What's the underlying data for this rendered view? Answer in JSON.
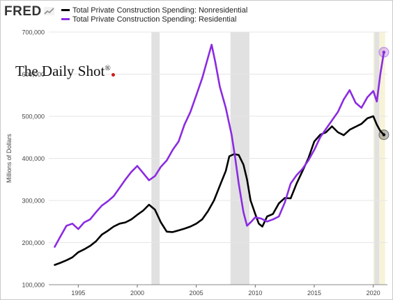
{
  "header": {
    "logo_text": "FRED",
    "logo_icon": "fred-chart-icon"
  },
  "watermark": {
    "text": "The Daily Shot",
    "mark": "®"
  },
  "chart_data": {
    "type": "line",
    "title": "",
    "xlabel": "",
    "ylabel": "Millions of Dollars",
    "xlim": [
      1992.5,
      2021.2
    ],
    "ylim": [
      100000,
      700000
    ],
    "y_ticks": [
      100000,
      200000,
      300000,
      400000,
      500000,
      600000,
      700000
    ],
    "y_tick_labels": [
      "100,000",
      "200,000",
      "300,000",
      "400,000",
      "500,000",
      "600,000",
      "700,000"
    ],
    "x_ticks": [
      1995,
      2000,
      2005,
      2010,
      2015,
      2020
    ],
    "x_tick_labels": [
      "1995",
      "2000",
      "2005",
      "2010",
      "2015",
      "2020"
    ],
    "grid": true,
    "legend": "top-left",
    "recessions": [
      [
        2001.2,
        2001.9
      ],
      [
        2007.9,
        2009.5
      ],
      [
        2020.1,
        2020.5
      ]
    ],
    "highlight_region": [
      2020.0,
      2021.0
    ],
    "series": [
      {
        "name": "Total Private Construction Spending: Nonresidential",
        "color": "#000000",
        "x": [
          1993.0,
          1993.5,
          1994.0,
          1994.5,
          1995.0,
          1995.5,
          1996.0,
          1996.5,
          1997.0,
          1997.5,
          1998.0,
          1998.5,
          1999.0,
          1999.5,
          2000.0,
          2000.5,
          2001.0,
          2001.5,
          2002.0,
          2002.5,
          2003.0,
          2003.5,
          2004.0,
          2004.5,
          2005.0,
          2005.5,
          2006.0,
          2006.5,
          2007.0,
          2007.5,
          2007.8,
          2008.2,
          2008.6,
          2009.0,
          2009.3,
          2009.6,
          2010.0,
          2010.3,
          2010.6,
          2011.0,
          2011.5,
          2012.0,
          2012.5,
          2013.0,
          2013.5,
          2014.0,
          2014.5,
          2015.0,
          2015.5,
          2016.0,
          2016.5,
          2017.0,
          2017.5,
          2018.0,
          2018.5,
          2019.0,
          2019.5,
          2020.0,
          2020.3,
          2020.6,
          2020.9
        ],
        "y": [
          147000,
          152000,
          158000,
          165000,
          177000,
          184000,
          192000,
          203000,
          219000,
          228000,
          238000,
          245000,
          248000,
          255000,
          266000,
          276000,
          290000,
          278000,
          248000,
          226000,
          225000,
          229000,
          233000,
          238000,
          245000,
          255000,
          275000,
          300000,
          335000,
          370000,
          405000,
          410000,
          408000,
          385000,
          350000,
          300000,
          268000,
          245000,
          238000,
          262000,
          268000,
          293000,
          306000,
          305000,
          340000,
          370000,
          400000,
          440000,
          456000,
          462000,
          476000,
          462000,
          455000,
          468000,
          475000,
          482000,
          495000,
          500000,
          480000,
          465000,
          456000
        ]
      },
      {
        "name": "Total Private Construction Spending: Residential",
        "color": "#8b2be2",
        "x": [
          1993.0,
          1993.5,
          1994.0,
          1994.5,
          1995.0,
          1995.5,
          1996.0,
          1996.5,
          1997.0,
          1997.5,
          1998.0,
          1998.5,
          1999.0,
          1999.5,
          2000.0,
          2000.5,
          2001.0,
          2001.5,
          2002.0,
          2002.5,
          2003.0,
          2003.5,
          2004.0,
          2004.5,
          2005.0,
          2005.5,
          2006.0,
          2006.3,
          2006.6,
          2007.0,
          2007.5,
          2008.0,
          2008.3,
          2008.6,
          2009.0,
          2009.3,
          2009.6,
          2010.0,
          2010.5,
          2011.0,
          2011.5,
          2012.0,
          2012.5,
          2013.0,
          2013.5,
          2014.0,
          2014.5,
          2015.0,
          2015.5,
          2016.0,
          2016.5,
          2017.0,
          2017.5,
          2018.0,
          2018.5,
          2019.0,
          2019.5,
          2020.0,
          2020.3,
          2020.6,
          2020.9
        ],
        "y": [
          190000,
          215000,
          240000,
          245000,
          232000,
          248000,
          255000,
          272000,
          288000,
          298000,
          310000,
          330000,
          350000,
          368000,
          382000,
          365000,
          348000,
          358000,
          380000,
          395000,
          420000,
          440000,
          480000,
          510000,
          550000,
          590000,
          640000,
          670000,
          630000,
          570000,
          520000,
          455000,
          400000,
          340000,
          272000,
          240000,
          248000,
          260000,
          257000,
          250000,
          255000,
          262000,
          295000,
          340000,
          360000,
          375000,
          395000,
          420000,
          450000,
          470000,
          490000,
          510000,
          540000,
          562000,
          532000,
          520000,
          545000,
          560000,
          535000,
          600000,
          652000
        ]
      }
    ]
  }
}
